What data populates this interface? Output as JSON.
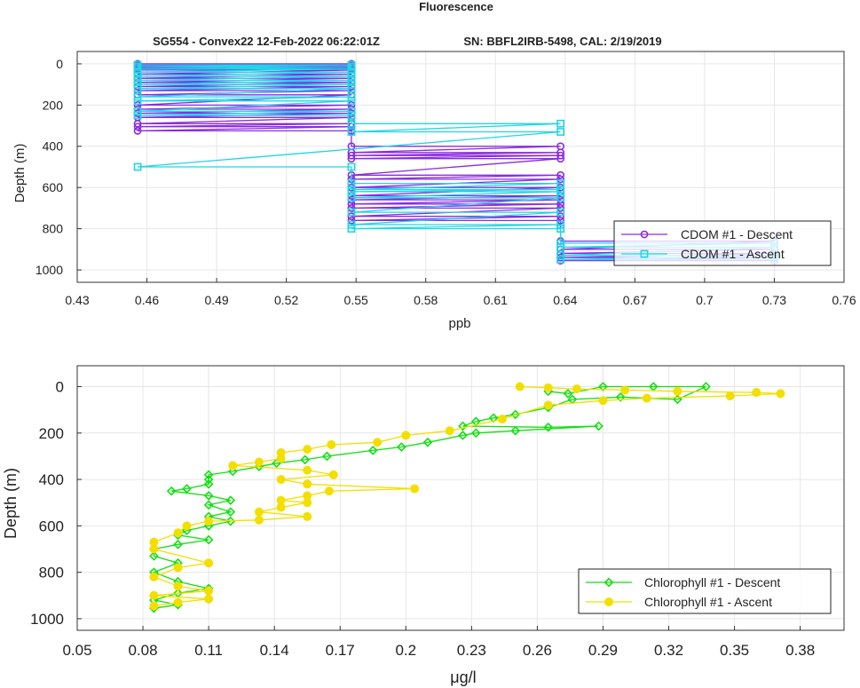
{
  "figure": {
    "title": "Fluorescence",
    "subtitle_left": "SG554 - Convex22 12-Feb-2022 06:22:01Z",
    "subtitle_right": "SN: BBFL2IRB-5498, CAL: 2/19/2019"
  },
  "chart_data": [
    {
      "type": "line",
      "xlabel": "ppb",
      "ylabel": "Depth (m)",
      "xlim": [
        0.43,
        0.76
      ],
      "ylim": [
        -60,
        1060
      ],
      "y_reversed": true,
      "xticks": [
        "0.43",
        "0.46",
        "0.49",
        "0.52",
        "0.55",
        "0.58",
        "0.61",
        "0.64",
        "0.67",
        "0.7",
        "0.73",
        "0.76"
      ],
      "yticks": [
        "0",
        "200",
        "400",
        "600",
        "800",
        "1000"
      ],
      "grid": true,
      "legend_position": "bottom-right",
      "series": [
        {
          "name": "CDOM #1 - Descent",
          "color": "#8B2BE2",
          "marker": "circle",
          "points": [
            [
              0.456,
              0
            ],
            [
              0.548,
              0
            ],
            [
              0.456,
              10
            ],
            [
              0.548,
              10
            ],
            [
              0.456,
              20
            ],
            [
              0.548,
              20
            ],
            [
              0.456,
              30
            ],
            [
              0.548,
              30
            ],
            [
              0.456,
              50
            ],
            [
              0.548,
              50
            ],
            [
              0.456,
              70
            ],
            [
              0.548,
              70
            ],
            [
              0.456,
              90
            ],
            [
              0.548,
              90
            ],
            [
              0.456,
              110
            ],
            [
              0.548,
              110
            ],
            [
              0.456,
              130
            ],
            [
              0.548,
              130
            ],
            [
              0.456,
              150
            ],
            [
              0.548,
              150
            ],
            [
              0.456,
              200
            ],
            [
              0.548,
              200
            ],
            [
              0.456,
              220
            ],
            [
              0.548,
              220
            ],
            [
              0.456,
              240
            ],
            [
              0.548,
              240
            ],
            [
              0.456,
              260
            ],
            [
              0.548,
              260
            ],
            [
              0.456,
              290
            ],
            [
              0.548,
              290
            ],
            [
              0.456,
              305
            ],
            [
              0.548,
              305
            ],
            [
              0.456,
              325
            ],
            [
              0.548,
              325
            ],
            [
              0.548,
              400
            ],
            [
              0.638,
              400
            ],
            [
              0.548,
              430
            ],
            [
              0.638,
              430
            ],
            [
              0.548,
              445
            ],
            [
              0.638,
              445
            ],
            [
              0.548,
              460
            ],
            [
              0.638,
              460
            ],
            [
              0.548,
              540
            ],
            [
              0.638,
              540
            ],
            [
              0.548,
              560
            ],
            [
              0.638,
              560
            ],
            [
              0.548,
              600
            ],
            [
              0.638,
              600
            ],
            [
              0.548,
              640
            ],
            [
              0.638,
              640
            ],
            [
              0.548,
              660
            ],
            [
              0.638,
              660
            ],
            [
              0.548,
              680
            ],
            [
              0.638,
              680
            ],
            [
              0.548,
              700
            ],
            [
              0.638,
              700
            ],
            [
              0.548,
              740
            ],
            [
              0.638,
              740
            ],
            [
              0.548,
              760
            ],
            [
              0.638,
              760
            ],
            [
              0.638,
              860
            ],
            [
              0.73,
              860
            ],
            [
              0.638,
              900
            ],
            [
              0.73,
              900
            ],
            [
              0.638,
              920
            ],
            [
              0.73,
              920
            ],
            [
              0.638,
              940
            ],
            [
              0.73,
              940
            ],
            [
              0.638,
              955
            ],
            [
              0.73,
              955
            ]
          ]
        },
        {
          "name": "CDOM #1 - Ascent",
          "color": "#1FD6E6",
          "marker": "square",
          "points": [
            [
              0.456,
              5
            ],
            [
              0.548,
              5
            ],
            [
              0.456,
              15
            ],
            [
              0.548,
              15
            ],
            [
              0.456,
              25
            ],
            [
              0.548,
              25
            ],
            [
              0.456,
              40
            ],
            [
              0.548,
              40
            ],
            [
              0.456,
              60
            ],
            [
              0.548,
              60
            ],
            [
              0.456,
              80
            ],
            [
              0.548,
              80
            ],
            [
              0.456,
              100
            ],
            [
              0.548,
              100
            ],
            [
              0.456,
              120
            ],
            [
              0.548,
              120
            ],
            [
              0.456,
              160
            ],
            [
              0.548,
              160
            ],
            [
              0.456,
              180
            ],
            [
              0.548,
              180
            ],
            [
              0.456,
              230
            ],
            [
              0.548,
              230
            ],
            [
              0.456,
              250
            ],
            [
              0.548,
              250
            ],
            [
              0.548,
              290
            ],
            [
              0.638,
              290
            ],
            [
              0.548,
              330
            ],
            [
              0.638,
              330
            ],
            [
              0.456,
              500
            ],
            [
              0.548,
              500
            ],
            [
              0.548,
              580
            ],
            [
              0.638,
              580
            ],
            [
              0.548,
              610
            ],
            [
              0.638,
              610
            ],
            [
              0.548,
              620
            ],
            [
              0.638,
              620
            ],
            [
              0.548,
              650
            ],
            [
              0.638,
              650
            ],
            [
              0.548,
              720
            ],
            [
              0.638,
              720
            ],
            [
              0.548,
              780
            ],
            [
              0.638,
              780
            ],
            [
              0.548,
              800
            ],
            [
              0.638,
              800
            ],
            [
              0.638,
              870
            ],
            [
              0.73,
              870
            ],
            [
              0.638,
              890
            ],
            [
              0.73,
              890
            ],
            [
              0.638,
              930
            ],
            [
              0.73,
              930
            ],
            [
              0.638,
              950
            ],
            [
              0.73,
              950
            ]
          ]
        }
      ]
    },
    {
      "type": "line",
      "xlabel": "μg/l",
      "ylabel": "Depth (m)",
      "xlim": [
        0.05,
        0.4
      ],
      "ylim": [
        -90,
        1050
      ],
      "y_reversed": true,
      "xticks": [
        "0.05",
        "0.08",
        "0.11",
        "0.14",
        "0.17",
        "0.2",
        "0.23",
        "0.26",
        "0.29",
        "0.32",
        "0.35",
        "0.38"
      ],
      "yticks": [
        "0",
        "200",
        "400",
        "600",
        "800",
        "1000"
      ],
      "grid": true,
      "legend_position": "bottom-right",
      "series": [
        {
          "name": "Chlorophyll #1 - Descent",
          "color": "#11E011",
          "marker": "diamond",
          "points": [
            [
              0.265,
              20
            ],
            [
              0.274,
              30
            ],
            [
              0.29,
              0
            ],
            [
              0.313,
              0
            ],
            [
              0.337,
              0
            ],
            [
              0.324,
              55
            ],
            [
              0.298,
              45
            ],
            [
              0.276,
              55
            ],
            [
              0.265,
              90
            ],
            [
              0.25,
              120
            ],
            [
              0.24,
              135
            ],
            [
              0.232,
              150
            ],
            [
              0.226,
              170
            ],
            [
              0.265,
              175
            ],
            [
              0.288,
              170
            ],
            [
              0.25,
              190
            ],
            [
              0.232,
              200
            ],
            [
              0.226,
              210
            ],
            [
              0.21,
              240
            ],
            [
              0.198,
              260
            ],
            [
              0.185,
              275
            ],
            [
              0.164,
              300
            ],
            [
              0.154,
              315
            ],
            [
              0.141,
              330
            ],
            [
              0.133,
              345
            ],
            [
              0.121,
              365
            ],
            [
              0.11,
              380
            ],
            [
              0.11,
              400
            ],
            [
              0.11,
              420
            ],
            [
              0.1,
              440
            ],
            [
              0.093,
              450
            ],
            [
              0.11,
              470
            ],
            [
              0.12,
              490
            ],
            [
              0.11,
              510
            ],
            [
              0.12,
              540
            ],
            [
              0.11,
              560
            ],
            [
              0.12,
              580
            ],
            [
              0.11,
              600
            ],
            [
              0.1,
              620
            ],
            [
              0.096,
              640
            ],
            [
              0.11,
              660
            ],
            [
              0.096,
              680
            ],
            [
              0.085,
              700
            ],
            [
              0.085,
              730
            ],
            [
              0.096,
              760
            ],
            [
              0.085,
              800
            ],
            [
              0.096,
              840
            ],
            [
              0.11,
              870
            ],
            [
              0.096,
              890
            ],
            [
              0.085,
              920
            ],
            [
              0.096,
              940
            ],
            [
              0.085,
              955
            ]
          ]
        },
        {
          "name": "Chlorophyll #1 - Ascent",
          "color": "#F2DF00",
          "marker": "circle",
          "points": [
            [
              0.252,
              0
            ],
            [
              0.265,
              5
            ],
            [
              0.278,
              10
            ],
            [
              0.3,
              15
            ],
            [
              0.324,
              20
            ],
            [
              0.36,
              25
            ],
            [
              0.371,
              30
            ],
            [
              0.348,
              40
            ],
            [
              0.31,
              50
            ],
            [
              0.29,
              60
            ],
            [
              0.265,
              80
            ],
            [
              0.244,
              140
            ],
            [
              0.22,
              190
            ],
            [
              0.2,
              210
            ],
            [
              0.187,
              240
            ],
            [
              0.166,
              250
            ],
            [
              0.155,
              270
            ],
            [
              0.143,
              285
            ],
            [
              0.143,
              310
            ],
            [
              0.133,
              325
            ],
            [
              0.121,
              340
            ],
            [
              0.155,
              360
            ],
            [
              0.167,
              380
            ],
            [
              0.143,
              400
            ],
            [
              0.155,
              420
            ],
            [
              0.204,
              440
            ],
            [
              0.165,
              450
            ],
            [
              0.155,
              470
            ],
            [
              0.143,
              490
            ],
            [
              0.155,
              500
            ],
            [
              0.143,
              520
            ],
            [
              0.133,
              540
            ],
            [
              0.155,
              560
            ],
            [
              0.133,
              575
            ],
            [
              0.11,
              580
            ],
            [
              0.1,
              600
            ],
            [
              0.096,
              630
            ],
            [
              0.085,
              670
            ],
            [
              0.085,
              700
            ],
            [
              0.11,
              760
            ],
            [
              0.096,
              780
            ],
            [
              0.085,
              820
            ],
            [
              0.096,
              860
            ],
            [
              0.11,
              880
            ],
            [
              0.085,
              900
            ],
            [
              0.11,
              915
            ],
            [
              0.096,
              930
            ],
            [
              0.085,
              945
            ]
          ]
        }
      ]
    }
  ]
}
